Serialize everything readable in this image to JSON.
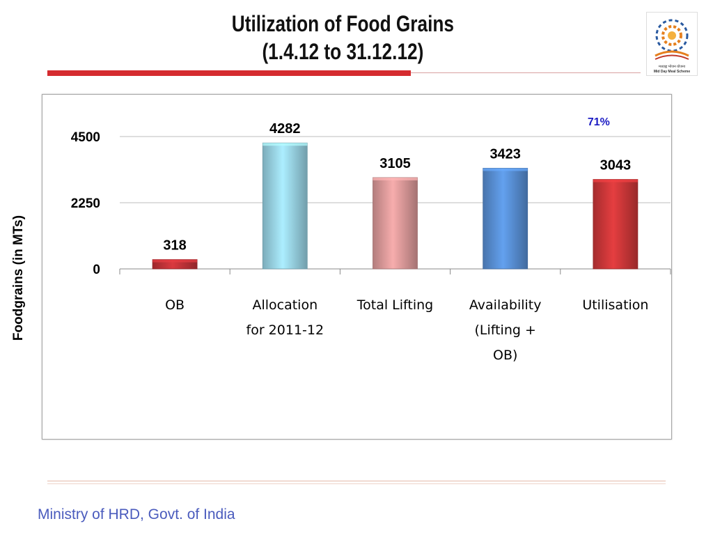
{
  "slide": {
    "title_line1": "Utilization of Food Grains",
    "title_line2": "(1.4.12 to 31.12.12)",
    "footer": "Ministry of HRD, Govt. of India",
    "logo_text_hindi": "मध्याह्न भोजन योजना",
    "logo_text_english": "Mid Day Meal Scheme"
  },
  "chart_data": {
    "type": "bar",
    "categories": [
      [
        "OB"
      ],
      [
        "Allocation",
        "for 2011-12"
      ],
      [
        "Total Lifting"
      ],
      [
        "Availability",
        "(Lifting +",
        "OB)"
      ],
      [
        "Utilisation"
      ]
    ],
    "values": [
      318,
      4282,
      3105,
      3423,
      3043
    ],
    "data_labels": [
      "318",
      "4282",
      "3105",
      "3423",
      "3043"
    ],
    "bar_colors": [
      "#c9353a",
      "#9fdcee",
      "#e5a0a0",
      "#5c95dd",
      "#d4393b"
    ],
    "ylabel": "Foodgrains (in MTs)",
    "ylim": [
      0,
      4500
    ],
    "yticks": [
      0,
      2250,
      4500
    ],
    "ytick_labels": [
      "0",
      "2250",
      "4500"
    ],
    "annotation": "71%",
    "grid": true,
    "legend": "none"
  }
}
